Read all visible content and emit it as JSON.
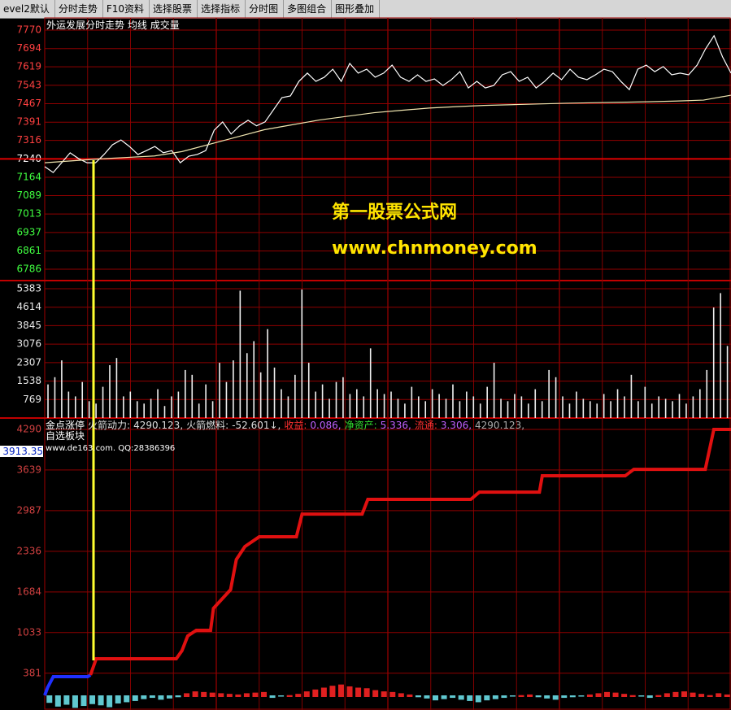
{
  "toolbar": [
    "evel2默认",
    "分时走势",
    "F10资料",
    "选择股票",
    "选择指标",
    "分时图",
    "多图组合",
    "图形叠加"
  ],
  "watermark": [
    "第一股票公式网",
    "www.chnmoney.com"
  ],
  "chart_data": [
    {
      "type": "line",
      "title": "外运发展分时走势",
      "xlim": [
        0,
        240
      ],
      "ylim": [
        6786,
        7770
      ],
      "yticks": [
        7770,
        7694,
        7619,
        7543,
        7467,
        7391,
        7316,
        7240,
        7164,
        7089,
        7013,
        6937,
        6861,
        6786
      ],
      "reference_line": 7240,
      "grid": true,
      "series": [
        {
          "color": "#ffffff",
          "values": [
            7208,
            7184,
            7224,
            7265,
            7241,
            7224,
            7224,
            7258,
            7298,
            7318,
            7291,
            7258,
            7274,
            7291,
            7265,
            7274,
            7224,
            7251,
            7258,
            7274,
            7358,
            7392,
            7342,
            7376,
            7399,
            7376,
            7392,
            7442,
            7492,
            7499,
            7559,
            7593,
            7559,
            7576,
            7609,
            7559,
            7633,
            7593,
            7609,
            7576,
            7593,
            7626,
            7576,
            7559,
            7586,
            7559,
            7569,
            7542,
            7566,
            7599,
            7532,
            7559,
            7532,
            7542,
            7586,
            7599,
            7559,
            7576,
            7532,
            7559,
            7593,
            7566,
            7609,
            7576,
            7566,
            7586,
            7609,
            7599,
            7559,
            7525,
            7609,
            7626,
            7599,
            7620,
            7586,
            7593,
            7586,
            7626,
            7693,
            7747,
            7660,
            7593
          ]
        },
        {
          "name": "均线",
          "color": "#f0e6b0",
          "values": [
            7224,
            7232,
            7240,
            7246,
            7252,
            7270,
            7300,
            7330,
            7360,
            7380,
            7400,
            7415,
            7430,
            7440,
            7449,
            7455,
            7460,
            7463,
            7466,
            7469,
            7471,
            7473,
            7475,
            7478,
            7482,
            7502
          ]
        }
      ]
    },
    {
      "type": "bar",
      "xlim": [
        0,
        240
      ],
      "ylim": [
        0,
        5383
      ],
      "yticks": [
        5383,
        4614,
        3845,
        3076,
        2307,
        1538,
        769
      ],
      "grid": true,
      "series": [
        {
          "name": "成交量",
          "color": "#f0f0f0",
          "values": [
            1400,
            1700,
            2400,
            1100,
            900,
            1500,
            700,
            600,
            1300,
            2200,
            2500,
            900,
            1100,
            700,
            600,
            800,
            1200,
            500,
            900,
            1100,
            2000,
            1800,
            600,
            1400,
            700,
            2300,
            1500,
            2400,
            5300,
            2700,
            3200,
            1900,
            3700,
            2100,
            1200,
            900,
            1800,
            5350,
            2300,
            1100,
            1400,
            800,
            1500,
            1700,
            1000,
            1200,
            900,
            2900,
            1200,
            1000,
            1100,
            800,
            600,
            1300,
            900,
            700,
            1200,
            1000,
            800,
            1400,
            700,
            1100,
            900,
            600,
            1300,
            2300,
            800,
            700,
            1000,
            900,
            600,
            1200,
            700,
            2000,
            1700,
            900,
            600,
            1100,
            800,
            700,
            600,
            1000,
            700,
            1200,
            900,
            1800,
            700,
            1300,
            600,
            900,
            800,
            700,
            1000,
            600,
            900,
            1200,
            2000,
            4600,
            5200,
            3000
          ]
        }
      ]
    },
    {
      "type": "step",
      "title": "金点涨停",
      "subtitle": "自选板块",
      "note": "www.de163.com.  QQ:28386396",
      "info": [
        {
          "label": "火箭动力:",
          "value": "4290.123,"
        },
        {
          "label": "火箭燃料:",
          "value": "-52.601↓,"
        },
        {
          "label": "收益:",
          "value": "0.086,"
        },
        {
          "label": "净资产:",
          "value": "5.336,"
        },
        {
          "label": "流通:",
          "value": "3.306,"
        },
        {
          "label": "",
          "value": "4290.123,"
        }
      ],
      "current_value": 3913.35,
      "xlim": [
        0,
        240
      ],
      "ylim": [
        0,
        4290
      ],
      "yticks": [
        4290,
        3639,
        2987,
        2336,
        1684,
        1033,
        381
      ],
      "grid": true,
      "series": [
        {
          "color": "#2030ff",
          "x": [
            0,
            1,
            3,
            15,
            16
          ],
          "values": [
            26,
            150,
            326,
            326,
            352
          ]
        },
        {
          "color": "#e01010",
          "x": [
            16,
            18,
            46,
            48,
            50,
            53,
            58,
            59,
            65,
            67,
            70,
            75,
            88,
            90,
            111,
            113,
            149,
            152,
            173,
            174,
            203,
            206,
            231,
            234,
            240
          ],
          "values": [
            352,
            613,
            613,
            743,
            978,
            1069,
            1069,
            1421,
            1721,
            2203,
            2412,
            2568,
            2568,
            2933,
            2933,
            3168,
            3168,
            3285,
            3285,
            3546,
            3546,
            3650,
            3650,
            4290,
            4290
          ]
        }
      ],
      "histogram": {
        "up_color": "#e02020",
        "down_color": "#60c8d0",
        "values": [
          -120,
          -180,
          -150,
          -200,
          -170,
          -140,
          -160,
          -190,
          -130,
          -110,
          -90,
          -60,
          -40,
          -70,
          -50,
          -30,
          60,
          90,
          80,
          70,
          60,
          50,
          40,
          60,
          70,
          80,
          -40,
          -20,
          30,
          50,
          90,
          120,
          150,
          180,
          200,
          170,
          150,
          140,
          110,
          90,
          80,
          60,
          40,
          -30,
          -50,
          -80,
          -60,
          -40,
          -70,
          -90,
          -110,
          -80,
          -60,
          -40,
          -20,
          30,
          40,
          -30,
          -50,
          -70,
          -40,
          -30,
          -20,
          40,
          60,
          80,
          70,
          50,
          30,
          -20,
          -40,
          30,
          60,
          80,
          90,
          70,
          50,
          30,
          60,
          40
        ]
      }
    }
  ]
}
